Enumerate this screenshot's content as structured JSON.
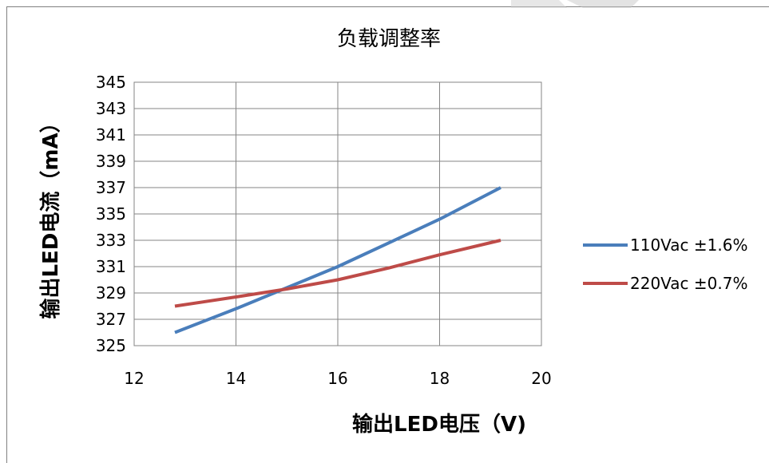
{
  "chart_data": {
    "type": "line",
    "title": "负载调整率",
    "xlabel": "输出LED电压（V)",
    "ylabel": "输出LED电流（mA）",
    "xlim": [
      12,
      20
    ],
    "ylim": [
      325,
      345
    ],
    "xticks": [
      "12",
      "14",
      "16",
      "18",
      "20"
    ],
    "yticks": [
      "325",
      "327",
      "329",
      "331",
      "333",
      "335",
      "337",
      "339",
      "341",
      "343",
      "345"
    ],
    "grid": true,
    "legend_position": "right",
    "series": [
      {
        "name": "110Vac ±1.6%",
        "color": "#4a7ebb",
        "x": [
          12.8,
          14.0,
          15.0,
          16.0,
          17.0,
          18.0,
          19.2
        ],
        "y": [
          326.0,
          327.8,
          329.4,
          331.0,
          332.8,
          334.6,
          337.0
        ]
      },
      {
        "name": "220Vac ±0.7%",
        "color": "#be4b48",
        "x": [
          12.8,
          14.0,
          15.0,
          16.0,
          17.0,
          18.0,
          19.2
        ],
        "y": [
          328.0,
          328.7,
          329.3,
          330.0,
          330.9,
          331.9,
          333.0
        ]
      }
    ]
  }
}
